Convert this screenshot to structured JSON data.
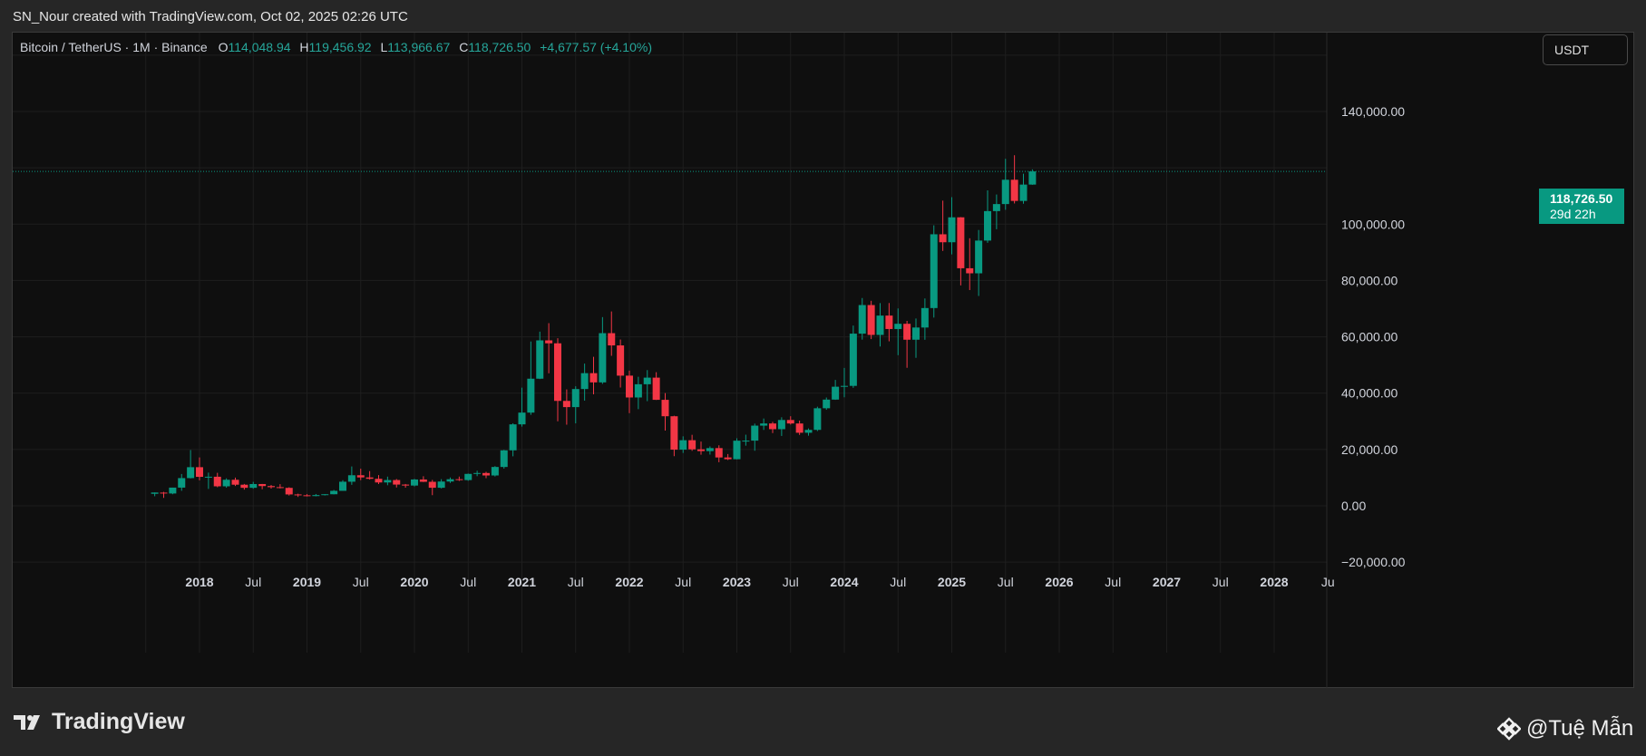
{
  "header": {
    "attribution": "SN_Nour created with TradingView.com, Oct 02, 2025 02:26 UTC"
  },
  "legend": {
    "symbol": "Bitcoin / TetherUS · 1M · Binance",
    "o_label": "O",
    "o_value": "114,048.94",
    "h_label": "H",
    "h_value": "119,456.92",
    "l_label": "L",
    "l_value": "113,966.67",
    "c_label": "C",
    "c_value": "118,726.50",
    "change": "+4,677.57 (+4.10%)"
  },
  "currency_button": "USDT",
  "price_tag": {
    "price": "118,726.50",
    "countdown": "29d 22h"
  },
  "branding": {
    "logo_text": "TradingView",
    "watermark": "@Tuệ Mẫn"
  },
  "colors": {
    "up": "#089981",
    "down": "#f23645",
    "grid": "#1e1e1e",
    "background": "#0f0f0f"
  },
  "chart_data": {
    "type": "candlestick",
    "title": "Bitcoin / TetherUS · 1M · Binance",
    "y_ticks": [
      -20000,
      0,
      20000,
      40000,
      60000,
      80000,
      100000,
      140000
    ],
    "y_tick_labels": [
      "−20,000.00",
      "0.00",
      "20,000.00",
      "40,000.00",
      "60,000.00",
      "80,000.00",
      "100,000.00",
      "140,000.00"
    ],
    "x_ticks": [
      "2018",
      "Jul",
      "2019",
      "Jul",
      "2020",
      "Jul",
      "2021",
      "Jul",
      "2022",
      "Jul",
      "2023",
      "Jul",
      "2024",
      "Jul",
      "2025",
      "Jul",
      "2026",
      "Jul",
      "2027",
      "Jul",
      "2028",
      "Ju"
    ],
    "last_price": 118726.5,
    "candles": [
      {
        "t": "2017-08",
        "o": 4261,
        "h": 4745,
        "l": 3400,
        "c": 4724
      },
      {
        "t": "2017-09",
        "o": 4690,
        "h": 4939,
        "l": 2817,
        "c": 4378
      },
      {
        "t": "2017-10",
        "o": 4378,
        "h": 6447,
        "l": 4110,
        "c": 6463
      },
      {
        "t": "2017-11",
        "o": 6463,
        "h": 11300,
        "l": 5325,
        "c": 9838
      },
      {
        "t": "2017-12",
        "o": 9838,
        "h": 19798,
        "l": 9722,
        "c": 13716
      },
      {
        "t": "2018-01",
        "o": 13716,
        "h": 17176,
        "l": 9035,
        "c": 10285
      },
      {
        "t": "2018-02",
        "o": 10285,
        "h": 11786,
        "l": 6000,
        "c": 10326
      },
      {
        "t": "2018-03",
        "o": 10326,
        "h": 11710,
        "l": 6600,
        "c": 6923
      },
      {
        "t": "2018-04",
        "o": 6923,
        "h": 9759,
        "l": 6430,
        "c": 9246
      },
      {
        "t": "2018-05",
        "o": 9246,
        "h": 10020,
        "l": 7034,
        "c": 7495
      },
      {
        "t": "2018-06",
        "o": 7495,
        "h": 7760,
        "l": 5750,
        "c": 6391
      },
      {
        "t": "2018-07",
        "o": 6391,
        "h": 8507,
        "l": 6070,
        "c": 7730
      },
      {
        "t": "2018-08",
        "o": 7730,
        "h": 7770,
        "l": 5880,
        "c": 7011
      },
      {
        "t": "2018-09",
        "o": 7011,
        "h": 7410,
        "l": 6100,
        "c": 6626
      },
      {
        "t": "2018-10",
        "o": 6626,
        "h": 7680,
        "l": 6180,
        "c": 6369
      },
      {
        "t": "2018-11",
        "o": 6369,
        "h": 6586,
        "l": 3652,
        "c": 4041
      },
      {
        "t": "2018-12",
        "o": 4041,
        "h": 4300,
        "l": 3156,
        "c": 3743
      },
      {
        "t": "2019-01",
        "o": 3743,
        "h": 4140,
        "l": 3350,
        "c": 3458
      },
      {
        "t": "2019-02",
        "o": 3458,
        "h": 4200,
        "l": 3371,
        "c": 3813
      },
      {
        "t": "2019-03",
        "o": 3813,
        "h": 4140,
        "l": 3670,
        "c": 4105
      },
      {
        "t": "2019-04",
        "o": 4105,
        "h": 5620,
        "l": 4075,
        "c": 5320
      },
      {
        "t": "2019-05",
        "o": 5320,
        "h": 9074,
        "l": 5320,
        "c": 8555
      },
      {
        "t": "2019-06",
        "o": 8555,
        "h": 13970,
        "l": 7448,
        "c": 10854
      },
      {
        "t": "2019-07",
        "o": 10854,
        "h": 13183,
        "l": 9111,
        "c": 10080
      },
      {
        "t": "2019-08",
        "o": 10080,
        "h": 12325,
        "l": 9320,
        "c": 9588
      },
      {
        "t": "2019-09",
        "o": 9588,
        "h": 10905,
        "l": 7710,
        "c": 8289
      },
      {
        "t": "2019-10",
        "o": 8289,
        "h": 10370,
        "l": 7300,
        "c": 9150
      },
      {
        "t": "2019-11",
        "o": 9150,
        "h": 9505,
        "l": 6515,
        "c": 7541
      },
      {
        "t": "2019-12",
        "o": 7541,
        "h": 7750,
        "l": 6435,
        "c": 7195
      },
      {
        "t": "2020-01",
        "o": 7195,
        "h": 9578,
        "l": 6871,
        "c": 9350
      },
      {
        "t": "2020-02",
        "o": 9350,
        "h": 10500,
        "l": 8445,
        "c": 8523
      },
      {
        "t": "2020-03",
        "o": 8523,
        "h": 9188,
        "l": 3782,
        "c": 6410
      },
      {
        "t": "2020-04",
        "o": 6410,
        "h": 9460,
        "l": 6150,
        "c": 8620
      },
      {
        "t": "2020-05",
        "o": 8620,
        "h": 10067,
        "l": 8117,
        "c": 9448
      },
      {
        "t": "2020-06",
        "o": 9448,
        "h": 10380,
        "l": 8833,
        "c": 9138
      },
      {
        "t": "2020-07",
        "o": 9138,
        "h": 11444,
        "l": 8893,
        "c": 11335
      },
      {
        "t": "2020-08",
        "o": 11335,
        "h": 12468,
        "l": 10518,
        "c": 11649
      },
      {
        "t": "2020-09",
        "o": 11649,
        "h": 12050,
        "l": 9825,
        "c": 10776
      },
      {
        "t": "2020-10",
        "o": 10776,
        "h": 14100,
        "l": 10416,
        "c": 13791
      },
      {
        "t": "2020-11",
        "o": 13791,
        "h": 19863,
        "l": 13195,
        "c": 19695
      },
      {
        "t": "2020-12",
        "o": 19695,
        "h": 29300,
        "l": 17572,
        "c": 28923
      },
      {
        "t": "2021-01",
        "o": 28923,
        "h": 41950,
        "l": 28130,
        "c": 33092
      },
      {
        "t": "2021-02",
        "o": 33092,
        "h": 58352,
        "l": 32296,
        "c": 45135
      },
      {
        "t": "2021-03",
        "o": 45135,
        "h": 61844,
        "l": 45000,
        "c": 58740
      },
      {
        "t": "2021-04",
        "o": 58740,
        "h": 64854,
        "l": 47044,
        "c": 57694
      },
      {
        "t": "2021-05",
        "o": 57694,
        "h": 59500,
        "l": 30000,
        "c": 37253
      },
      {
        "t": "2021-06",
        "o": 37253,
        "h": 41330,
        "l": 28805,
        "c": 35045
      },
      {
        "t": "2021-07",
        "o": 35045,
        "h": 42448,
        "l": 29278,
        "c": 41461
      },
      {
        "t": "2021-08",
        "o": 41461,
        "h": 50500,
        "l": 37332,
        "c": 47100
      },
      {
        "t": "2021-09",
        "o": 47100,
        "h": 52920,
        "l": 39600,
        "c": 43824
      },
      {
        "t": "2021-10",
        "o": 43824,
        "h": 67000,
        "l": 43283,
        "c": 61299
      },
      {
        "t": "2021-11",
        "o": 61299,
        "h": 69000,
        "l": 53256,
        "c": 56950
      },
      {
        "t": "2021-12",
        "o": 56950,
        "h": 59053,
        "l": 42000,
        "c": 46216
      },
      {
        "t": "2022-01",
        "o": 46216,
        "h": 47990,
        "l": 32917,
        "c": 38466
      },
      {
        "t": "2022-02",
        "o": 38466,
        "h": 45821,
        "l": 34322,
        "c": 43160
      },
      {
        "t": "2022-03",
        "o": 43160,
        "h": 48189,
        "l": 37155,
        "c": 45510
      },
      {
        "t": "2022-04",
        "o": 45510,
        "h": 47444,
        "l": 37578,
        "c": 37630
      },
      {
        "t": "2022-05",
        "o": 37630,
        "h": 40023,
        "l": 26700,
        "c": 31801
      },
      {
        "t": "2022-06",
        "o": 31801,
        "h": 31982,
        "l": 17622,
        "c": 19942
      },
      {
        "t": "2022-07",
        "o": 19942,
        "h": 24668,
        "l": 18781,
        "c": 23293
      },
      {
        "t": "2022-08",
        "o": 23293,
        "h": 25211,
        "l": 19520,
        "c": 20050
      },
      {
        "t": "2022-09",
        "o": 20050,
        "h": 22799,
        "l": 18125,
        "c": 19422
      },
      {
        "t": "2022-10",
        "o": 19422,
        "h": 21085,
        "l": 18190,
        "c": 20490
      },
      {
        "t": "2022-11",
        "o": 20490,
        "h": 21480,
        "l": 15476,
        "c": 17164
      },
      {
        "t": "2022-12",
        "o": 17164,
        "h": 18387,
        "l": 16256,
        "c": 16542
      },
      {
        "t": "2023-01",
        "o": 16542,
        "h": 23960,
        "l": 16499,
        "c": 23125
      },
      {
        "t": "2023-02",
        "o": 23125,
        "h": 25250,
        "l": 21351,
        "c": 23141
      },
      {
        "t": "2023-03",
        "o": 23141,
        "h": 29184,
        "l": 19549,
        "c": 28465
      },
      {
        "t": "2023-04",
        "o": 28465,
        "h": 31000,
        "l": 26942,
        "c": 29233
      },
      {
        "t": "2023-05",
        "o": 29233,
        "h": 29820,
        "l": 25811,
        "c": 27210
      },
      {
        "t": "2023-06",
        "o": 27210,
        "h": 31431,
        "l": 24800,
        "c": 30472
      },
      {
        "t": "2023-07",
        "o": 30472,
        "h": 31804,
        "l": 28861,
        "c": 29232
      },
      {
        "t": "2023-08",
        "o": 29232,
        "h": 30244,
        "l": 25166,
        "c": 25941
      },
      {
        "t": "2023-09",
        "o": 25941,
        "h": 27483,
        "l": 24901,
        "c": 26962
      },
      {
        "t": "2023-10",
        "o": 26962,
        "h": 35198,
        "l": 26538,
        "c": 34639
      },
      {
        "t": "2023-11",
        "o": 34639,
        "h": 38450,
        "l": 34097,
        "c": 37712
      },
      {
        "t": "2023-12",
        "o": 37712,
        "h": 44700,
        "l": 37629,
        "c": 42284
      },
      {
        "t": "2024-01",
        "o": 42284,
        "h": 48970,
        "l": 38555,
        "c": 42580
      },
      {
        "t": "2024-02",
        "o": 42580,
        "h": 64000,
        "l": 41884,
        "c": 61130
      },
      {
        "t": "2024-03",
        "o": 61130,
        "h": 73777,
        "l": 59005,
        "c": 71280
      },
      {
        "t": "2024-04",
        "o": 71280,
        "h": 72797,
        "l": 59191,
        "c": 60672
      },
      {
        "t": "2024-05",
        "o": 60672,
        "h": 71980,
        "l": 56552,
        "c": 67540
      },
      {
        "t": "2024-06",
        "o": 67540,
        "h": 71997,
        "l": 58402,
        "c": 62772
      },
      {
        "t": "2024-07",
        "o": 62772,
        "h": 70079,
        "l": 53485,
        "c": 64628
      },
      {
        "t": "2024-08",
        "o": 64628,
        "h": 65659,
        "l": 49000,
        "c": 58974
      },
      {
        "t": "2024-09",
        "o": 58974,
        "h": 66498,
        "l": 52550,
        "c": 63301
      },
      {
        "t": "2024-10",
        "o": 63301,
        "h": 73620,
        "l": 58946,
        "c": 70215
      },
      {
        "t": "2024-11",
        "o": 70215,
        "h": 99588,
        "l": 66835,
        "c": 96407
      },
      {
        "t": "2024-12",
        "o": 96407,
        "h": 108353,
        "l": 90500,
        "c": 93576
      },
      {
        "t": "2025-01",
        "o": 93576,
        "h": 109588,
        "l": 89256,
        "c": 102429
      },
      {
        "t": "2025-02",
        "o": 102429,
        "h": 102500,
        "l": 78258,
        "c": 84349
      },
      {
        "t": "2025-03",
        "o": 84349,
        "h": 95000,
        "l": 76606,
        "c": 82548
      },
      {
        "t": "2025-04",
        "o": 82548,
        "h": 97938,
        "l": 74508,
        "c": 94172
      },
      {
        "t": "2025-05",
        "o": 94172,
        "h": 111980,
        "l": 93377,
        "c": 104638
      },
      {
        "t": "2025-06",
        "o": 104638,
        "h": 110530,
        "l": 98200,
        "c": 107135
      },
      {
        "t": "2025-07",
        "o": 107135,
        "h": 123218,
        "l": 105100,
        "c": 115764
      },
      {
        "t": "2025-08",
        "o": 115764,
        "h": 124474,
        "l": 107350,
        "c": 108246
      },
      {
        "t": "2025-09",
        "o": 108246,
        "h": 117900,
        "l": 107255,
        "c": 114048.94
      },
      {
        "t": "2025-10",
        "o": 114048.94,
        "h": 119456.92,
        "l": 113966.67,
        "c": 118726.5
      }
    ]
  }
}
